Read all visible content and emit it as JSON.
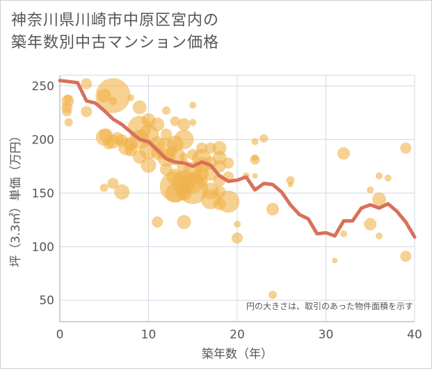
{
  "title_line1": "神奈川県川崎市中原区宮内の",
  "title_line2": "築年数別中古マンション価格",
  "chart_data": {
    "type": "scatter",
    "title": "神奈川県川崎市中原区宮内の築年数別中古マンション価格",
    "xlabel": "築年数（年）",
    "ylabel": "坪（3.3㎡）単価（万円）",
    "xlim": [
      0,
      40
    ],
    "ylim": [
      30,
      260
    ],
    "x_ticks": [
      0,
      10,
      20,
      30,
      40
    ],
    "y_ticks": [
      50,
      100,
      150,
      200,
      250
    ],
    "grid": true,
    "note": "円の大きさは、取引のあった物件面積を示す",
    "colors": {
      "bubble": "#f0b24a",
      "line": "#d9705a",
      "grid": "#cfd8e3"
    },
    "average_line": {
      "x": [
        0,
        1,
        2,
        3,
        4,
        5,
        6,
        7,
        8,
        9,
        10,
        11,
        12,
        13,
        14,
        15,
        16,
        17,
        18,
        19,
        20,
        21,
        22,
        23,
        24,
        25,
        26,
        27,
        28,
        29,
        30,
        31,
        32,
        33,
        34,
        35,
        36,
        37,
        38,
        39,
        40
      ],
      "y": [
        255,
        254,
        253,
        236,
        234,
        227,
        219,
        214,
        207,
        200,
        198,
        190,
        182,
        179,
        178,
        175,
        179,
        176,
        166,
        161,
        162,
        165,
        153,
        159,
        158,
        151,
        139,
        130,
        126,
        112,
        113,
        110,
        124,
        124,
        136,
        139,
        136,
        140,
        133,
        123,
        109
      ]
    },
    "points": [
      {
        "x": 0.8,
        "y": 226,
        "s": 7
      },
      {
        "x": 0.8,
        "y": 230,
        "s": 8
      },
      {
        "x": 0.9,
        "y": 236,
        "s": 9
      },
      {
        "x": 0.9,
        "y": 238,
        "s": 6
      },
      {
        "x": 1,
        "y": 216,
        "s": 6
      },
      {
        "x": 3,
        "y": 252,
        "s": 8
      },
      {
        "x": 3,
        "y": 226,
        "s": 8
      },
      {
        "x": 5,
        "y": 241,
        "s": 10
      },
      {
        "x": 5,
        "y": 202,
        "s": 12
      },
      {
        "x": 5.2,
        "y": 204,
        "s": 10
      },
      {
        "x": 5,
        "y": 155,
        "s": 6
      },
      {
        "x": 5.5,
        "y": 196,
        "s": 8
      },
      {
        "x": 6,
        "y": 241,
        "s": 25
      },
      {
        "x": 6,
        "y": 236,
        "s": 6
      },
      {
        "x": 6,
        "y": 198,
        "s": 10
      },
      {
        "x": 6,
        "y": 159,
        "s": 8
      },
      {
        "x": 6.5,
        "y": 201,
        "s": 9
      },
      {
        "x": 7,
        "y": 199,
        "s": 9
      },
      {
        "x": 7,
        "y": 151,
        "s": 11
      },
      {
        "x": 7.5,
        "y": 193,
        "s": 12
      },
      {
        "x": 8,
        "y": 239,
        "s": 5
      },
      {
        "x": 8,
        "y": 196,
        "s": 10
      },
      {
        "x": 8,
        "y": 190,
        "s": 9
      },
      {
        "x": 9,
        "y": 230,
        "s": 10
      },
      {
        "x": 9,
        "y": 211,
        "s": 17
      },
      {
        "x": 9,
        "y": 200,
        "s": 14
      },
      {
        "x": 9,
        "y": 184,
        "s": 10
      },
      {
        "x": 10,
        "y": 218,
        "s": 10
      },
      {
        "x": 10,
        "y": 204,
        "s": 15
      },
      {
        "x": 10,
        "y": 190,
        "s": 13
      },
      {
        "x": 10,
        "y": 176,
        "s": 11
      },
      {
        "x": 11,
        "y": 214,
        "s": 10
      },
      {
        "x": 11,
        "y": 196,
        "s": 11
      },
      {
        "x": 11,
        "y": 187,
        "s": 9
      },
      {
        "x": 11,
        "y": 123,
        "s": 8
      },
      {
        "x": 12,
        "y": 227,
        "s": 6
      },
      {
        "x": 12,
        "y": 205,
        "s": 8
      },
      {
        "x": 12,
        "y": 191,
        "s": 16
      },
      {
        "x": 12,
        "y": 183,
        "s": 13
      },
      {
        "x": 12,
        "y": 172,
        "s": 9
      },
      {
        "x": 13,
        "y": 217,
        "s": 7
      },
      {
        "x": 13,
        "y": 196,
        "s": 12
      },
      {
        "x": 13,
        "y": 185,
        "s": 14
      },
      {
        "x": 13,
        "y": 165,
        "s": 12
      },
      {
        "x": 13,
        "y": 156,
        "s": 22
      },
      {
        "x": 13,
        "y": 150,
        "s": 14
      },
      {
        "x": 14,
        "y": 214,
        "s": 9
      },
      {
        "x": 14,
        "y": 200,
        "s": 14
      },
      {
        "x": 14,
        "y": 184,
        "s": 6
      },
      {
        "x": 14,
        "y": 175,
        "s": 10
      },
      {
        "x": 14,
        "y": 160,
        "s": 17
      },
      {
        "x": 14,
        "y": 150,
        "s": 11
      },
      {
        "x": 14,
        "y": 123,
        "s": 10
      },
      {
        "x": 15,
        "y": 232,
        "s": 5
      },
      {
        "x": 15,
        "y": 216,
        "s": 5
      },
      {
        "x": 15,
        "y": 186,
        "s": 8
      },
      {
        "x": 15,
        "y": 170,
        "s": 14
      },
      {
        "x": 15,
        "y": 160,
        "s": 16
      },
      {
        "x": 15,
        "y": 154,
        "s": 22
      },
      {
        "x": 16,
        "y": 192,
        "s": 8
      },
      {
        "x": 16,
        "y": 182,
        "s": 14
      },
      {
        "x": 16,
        "y": 176,
        "s": 12
      },
      {
        "x": 16,
        "y": 168,
        "s": 10
      },
      {
        "x": 16,
        "y": 162,
        "s": 9
      },
      {
        "x": 17,
        "y": 192,
        "s": 8
      },
      {
        "x": 17,
        "y": 178,
        "s": 9
      },
      {
        "x": 17,
        "y": 168,
        "s": 10
      },
      {
        "x": 17,
        "y": 152,
        "s": 12
      },
      {
        "x": 17,
        "y": 144,
        "s": 14
      },
      {
        "x": 18,
        "y": 192,
        "s": 10
      },
      {
        "x": 18,
        "y": 183,
        "s": 10
      },
      {
        "x": 18,
        "y": 175,
        "s": 9
      },
      {
        "x": 18,
        "y": 162,
        "s": 9
      },
      {
        "x": 18,
        "y": 151,
        "s": 9
      },
      {
        "x": 18,
        "y": 140,
        "s": 9
      },
      {
        "x": 19,
        "y": 178,
        "s": 8
      },
      {
        "x": 19,
        "y": 165,
        "s": 8
      },
      {
        "x": 19,
        "y": 142,
        "s": 16
      },
      {
        "x": 20,
        "y": 121,
        "s": 5
      },
      {
        "x": 20,
        "y": 108,
        "s": 8
      },
      {
        "x": 21,
        "y": 166,
        "s": 5
      },
      {
        "x": 22,
        "y": 198,
        "s": 5
      },
      {
        "x": 22,
        "y": 183,
        "s": 5
      },
      {
        "x": 22,
        "y": 181,
        "s": 7
      },
      {
        "x": 22,
        "y": 166,
        "s": 4
      },
      {
        "x": 23,
        "y": 201,
        "s": 6
      },
      {
        "x": 24,
        "y": 135,
        "s": 9
      },
      {
        "x": 24,
        "y": 55,
        "s": 6
      },
      {
        "x": 26,
        "y": 162,
        "s": 6
      },
      {
        "x": 26,
        "y": 158,
        "s": 4
      },
      {
        "x": 31,
        "y": 87,
        "s": 4
      },
      {
        "x": 32,
        "y": 187,
        "s": 9
      },
      {
        "x": 32,
        "y": 112,
        "s": 5
      },
      {
        "x": 35,
        "y": 153,
        "s": 5
      },
      {
        "x": 35,
        "y": 121,
        "s": 9
      },
      {
        "x": 36,
        "y": 166,
        "s": 5
      },
      {
        "x": 36,
        "y": 144,
        "s": 10
      },
      {
        "x": 36,
        "y": 110,
        "s": 5
      },
      {
        "x": 37,
        "y": 164,
        "s": 5
      },
      {
        "x": 39,
        "y": 192,
        "s": 8
      },
      {
        "x": 39,
        "y": 91,
        "s": 8
      }
    ]
  }
}
